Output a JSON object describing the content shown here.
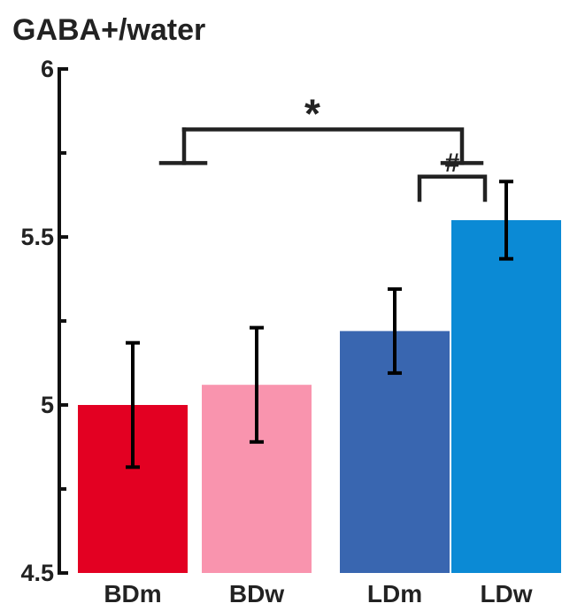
{
  "chart_data": {
    "type": "bar",
    "title": "GABA+/water",
    "xlabel": "",
    "ylabel": "",
    "ylim": [
      4.5,
      6
    ],
    "yticks": [
      {
        "value": 4.5,
        "label": "4.5"
      },
      {
        "value": 5,
        "label": "5"
      },
      {
        "value": 5.5,
        "label": "5.5"
      },
      {
        "value": 6,
        "label": "6"
      }
    ],
    "minor_yticks": [
      4.75,
      5.25,
      5.75
    ],
    "categories": [
      "BDm",
      "BDw",
      "LDm",
      "LDw"
    ],
    "values": [
      5.0,
      5.06,
      5.22,
      5.55
    ],
    "error": [
      0.185,
      0.17,
      0.125,
      0.115
    ],
    "colors": [
      "#e30022",
      "#f994ae",
      "#3966b0",
      "#0b8ad5"
    ],
    "grid": false,
    "legend": "none",
    "annotations": [
      {
        "label": "*",
        "from": "BDm",
        "to": "LDm",
        "level": 5.82,
        "tip": 5.72
      },
      {
        "label": "#",
        "from": "LDm",
        "to": "LDw",
        "level": 5.69,
        "tip": 5.65
      }
    ]
  }
}
